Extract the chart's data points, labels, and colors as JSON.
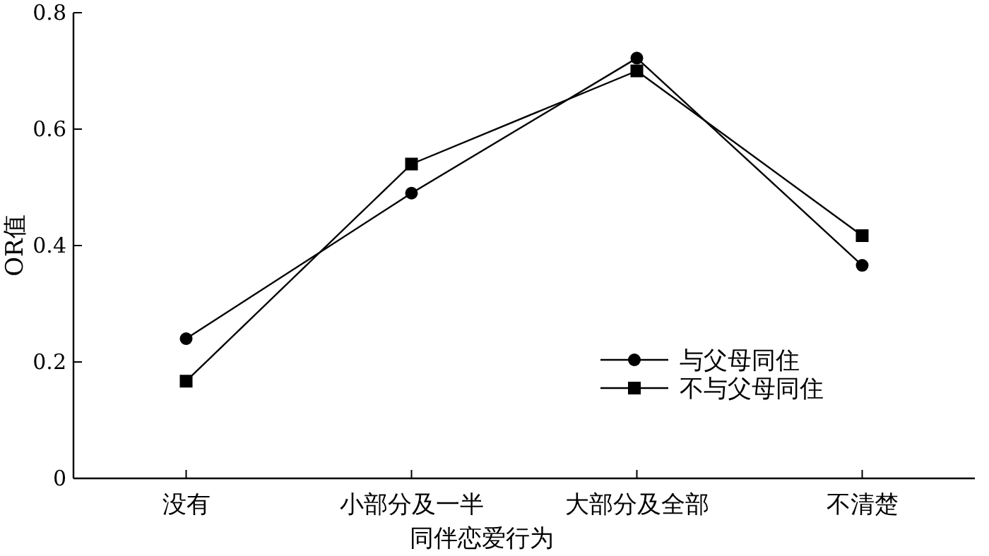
{
  "chart_data": {
    "type": "line",
    "xlabel": "同伴恋爱行为",
    "ylabel": "OR值",
    "categories": [
      "没有",
      "小部分及一半",
      "大部分及全部",
      "不清楚"
    ],
    "ylim": [
      0,
      0.8
    ],
    "yticks": [
      0,
      {
        "value": 0.2,
        "label": "0.2"
      },
      {
        "value": 0.4,
        "label": "0.4"
      },
      {
        "value": 0.6,
        "label": "0.6"
      },
      {
        "value": 0.8,
        "label": "0.8"
      }
    ],
    "series": [
      {
        "name": "与父母同住",
        "color": "#000000",
        "marker": "circle",
        "values": [
          0.24,
          0.49,
          0.722,
          0.366
        ]
      },
      {
        "name": "不与父母同住",
        "color": "#000000",
        "marker": "square",
        "values": [
          0.167,
          0.54,
          0.7,
          0.417
        ]
      }
    ],
    "legend": "bottom right",
    "grid": false,
    "line_style": "solid"
  }
}
